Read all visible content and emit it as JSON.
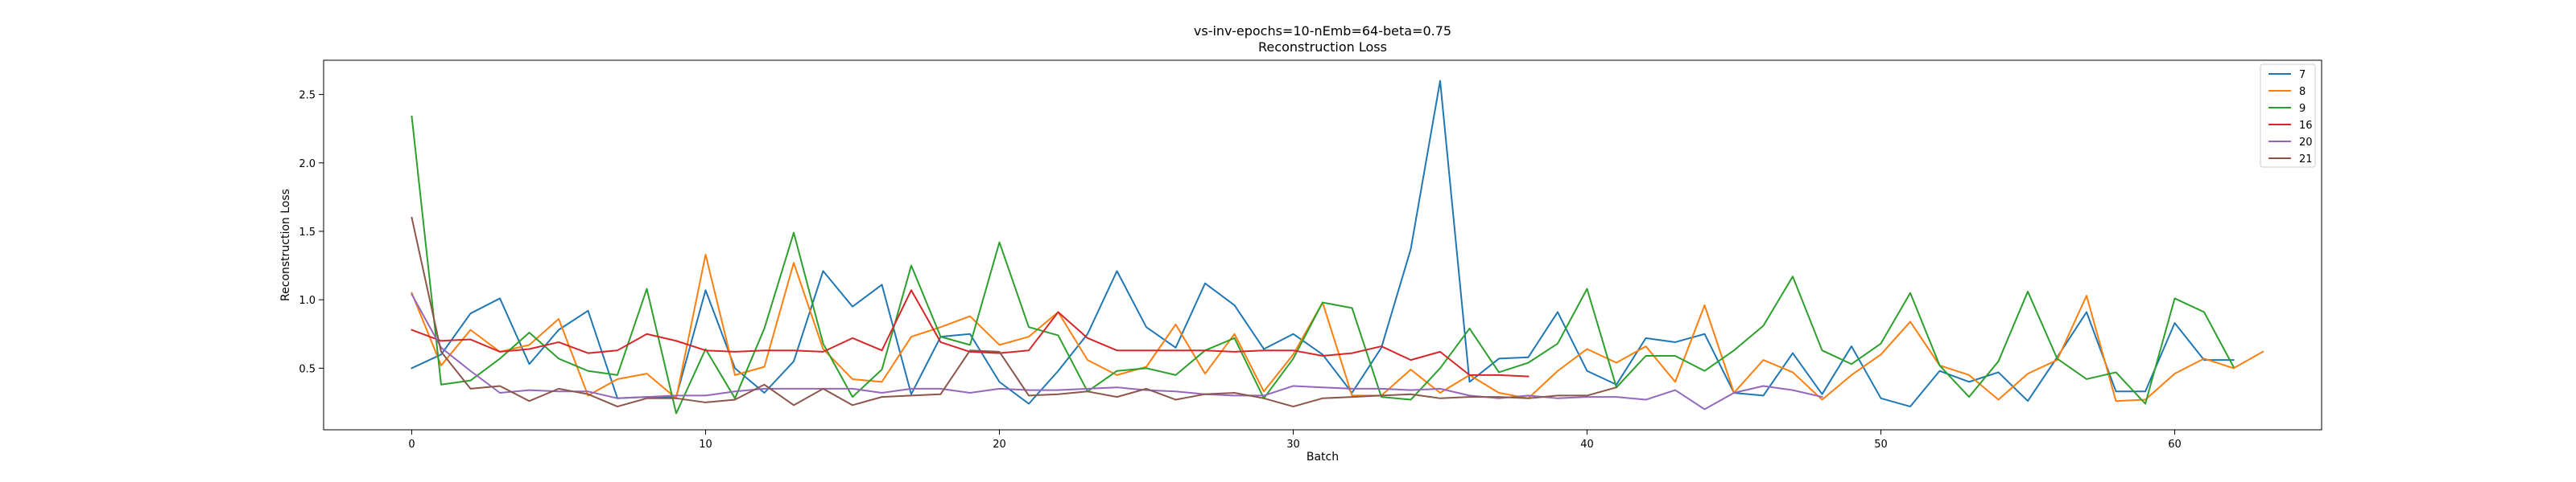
{
  "chart_data": {
    "type": "line",
    "title": "vs-inv-epochs=10-nEmb=64-beta=0.75",
    "subtitle": "Reconstruction Loss",
    "xlabel": "Batch",
    "ylabel": "Reconstruction Loss",
    "xlim": [
      -3,
      65
    ],
    "ylim": [
      0.05,
      2.75
    ],
    "xticks": [
      0,
      10,
      20,
      30,
      40,
      50,
      60
    ],
    "yticks": [
      0.5,
      1.0,
      1.5,
      2.0,
      2.5
    ],
    "xtick_labels": [
      "0",
      "10",
      "20",
      "30",
      "40",
      "50",
      "60"
    ],
    "ytick_labels": [
      "0.5",
      "1.0",
      "1.5",
      "2.0",
      "2.5"
    ],
    "grid": false,
    "legend_position": "top-right",
    "series": [
      {
        "name": "7",
        "color": "#1f77b4",
        "values": [
          0.5,
          0.6,
          0.9,
          1.01,
          0.53,
          0.78,
          0.92,
          0.28,
          0.29,
          0.29,
          1.07,
          0.5,
          0.32,
          0.55,
          1.21,
          0.95,
          1.11,
          0.31,
          0.73,
          0.75,
          0.4,
          0.24,
          0.48,
          0.75,
          1.21,
          0.8,
          0.65,
          1.12,
          0.96,
          0.64,
          0.75,
          0.6,
          0.32,
          0.65,
          1.37,
          2.6,
          0.4,
          0.57,
          0.58,
          0.91,
          0.48,
          0.38,
          0.72,
          0.69,
          0.75,
          0.32,
          0.3,
          0.61,
          0.31,
          0.66,
          0.28,
          0.22,
          0.48,
          0.4,
          0.47,
          0.26,
          0.58,
          0.91,
          0.33,
          0.33,
          0.83,
          0.56,
          0.56
        ]
      },
      {
        "name": "8",
        "color": "#ff7f0e",
        "values": [
          1.05,
          0.52,
          0.78,
          0.62,
          0.67,
          0.86,
          0.3,
          0.42,
          0.46,
          0.28,
          1.33,
          0.45,
          0.51,
          1.27,
          0.64,
          0.42,
          0.4,
          0.73,
          0.8,
          0.88,
          0.67,
          0.73,
          0.91,
          0.56,
          0.45,
          0.51,
          0.82,
          0.46,
          0.75,
          0.33,
          0.6,
          0.98,
          0.3,
          0.3,
          0.49,
          0.32,
          0.45,
          0.32,
          0.28,
          0.48,
          0.64,
          0.54,
          0.66,
          0.4,
          0.96,
          0.32,
          0.56,
          0.47,
          0.27,
          0.45,
          0.6,
          0.84,
          0.52,
          0.45,
          0.27,
          0.46,
          0.56,
          1.03,
          0.26,
          0.27,
          0.46,
          0.57,
          0.5,
          0.62
        ]
      },
      {
        "name": "9",
        "color": "#2ca02c",
        "values": [
          2.34,
          0.38,
          0.41,
          0.57,
          0.76,
          0.57,
          0.48,
          0.45,
          1.08,
          0.17,
          0.64,
          0.28,
          0.79,
          1.49,
          0.68,
          0.29,
          0.49,
          1.25,
          0.73,
          0.67,
          1.42,
          0.8,
          0.74,
          0.33,
          0.48,
          0.5,
          0.45,
          0.63,
          0.72,
          0.28,
          0.57,
          0.98,
          0.94,
          0.29,
          0.27,
          0.5,
          0.79,
          0.47,
          0.54,
          0.68,
          1.08,
          0.36,
          0.59,
          0.59,
          0.48,
          0.63,
          0.81,
          1.17,
          0.63,
          0.53,
          0.68,
          1.05,
          0.52,
          0.29,
          0.55,
          1.06,
          0.57,
          0.42,
          0.47,
          0.24,
          1.01,
          0.91,
          0.51
        ]
      },
      {
        "name": "16",
        "color": "#d62728",
        "values": [
          0.78,
          0.7,
          0.71,
          0.62,
          0.64,
          0.69,
          0.61,
          0.63,
          0.75,
          0.7,
          0.63,
          0.62,
          0.63,
          0.63,
          0.62,
          0.72,
          0.63,
          1.07,
          0.69,
          0.62,
          0.61,
          0.63,
          0.91,
          0.72,
          0.63,
          0.63,
          0.63,
          0.63,
          0.62,
          0.63,
          0.63,
          0.59,
          0.61,
          0.66,
          0.56,
          0.62,
          0.45,
          0.45,
          0.44
        ]
      },
      {
        "name": "20",
        "color": "#9467bd",
        "values": [
          1.04,
          0.65,
          0.48,
          0.32,
          0.34,
          0.33,
          0.33,
          0.28,
          0.29,
          0.3,
          0.3,
          0.33,
          0.35,
          0.35,
          0.35,
          0.35,
          0.32,
          0.35,
          0.35,
          0.32,
          0.35,
          0.34,
          0.34,
          0.35,
          0.36,
          0.34,
          0.33,
          0.31,
          0.3,
          0.3,
          0.37,
          0.36,
          0.35,
          0.35,
          0.34,
          0.35,
          0.3,
          0.28,
          0.3,
          0.28,
          0.29,
          0.29,
          0.27,
          0.34,
          0.2,
          0.32,
          0.37,
          0.34,
          0.29
        ]
      },
      {
        "name": "21",
        "color": "#8c564b",
        "values": [
          1.6,
          0.62,
          0.35,
          0.37,
          0.26,
          0.35,
          0.31,
          0.22,
          0.28,
          0.28,
          0.25,
          0.27,
          0.38,
          0.23,
          0.35,
          0.23,
          0.29,
          0.3,
          0.31,
          0.63,
          0.62,
          0.3,
          0.31,
          0.33,
          0.29,
          0.35,
          0.27,
          0.31,
          0.32,
          0.28,
          0.22,
          0.28,
          0.29,
          0.3,
          0.31,
          0.28,
          0.29,
          0.29,
          0.28,
          0.3,
          0.3,
          0.36
        ]
      }
    ]
  }
}
